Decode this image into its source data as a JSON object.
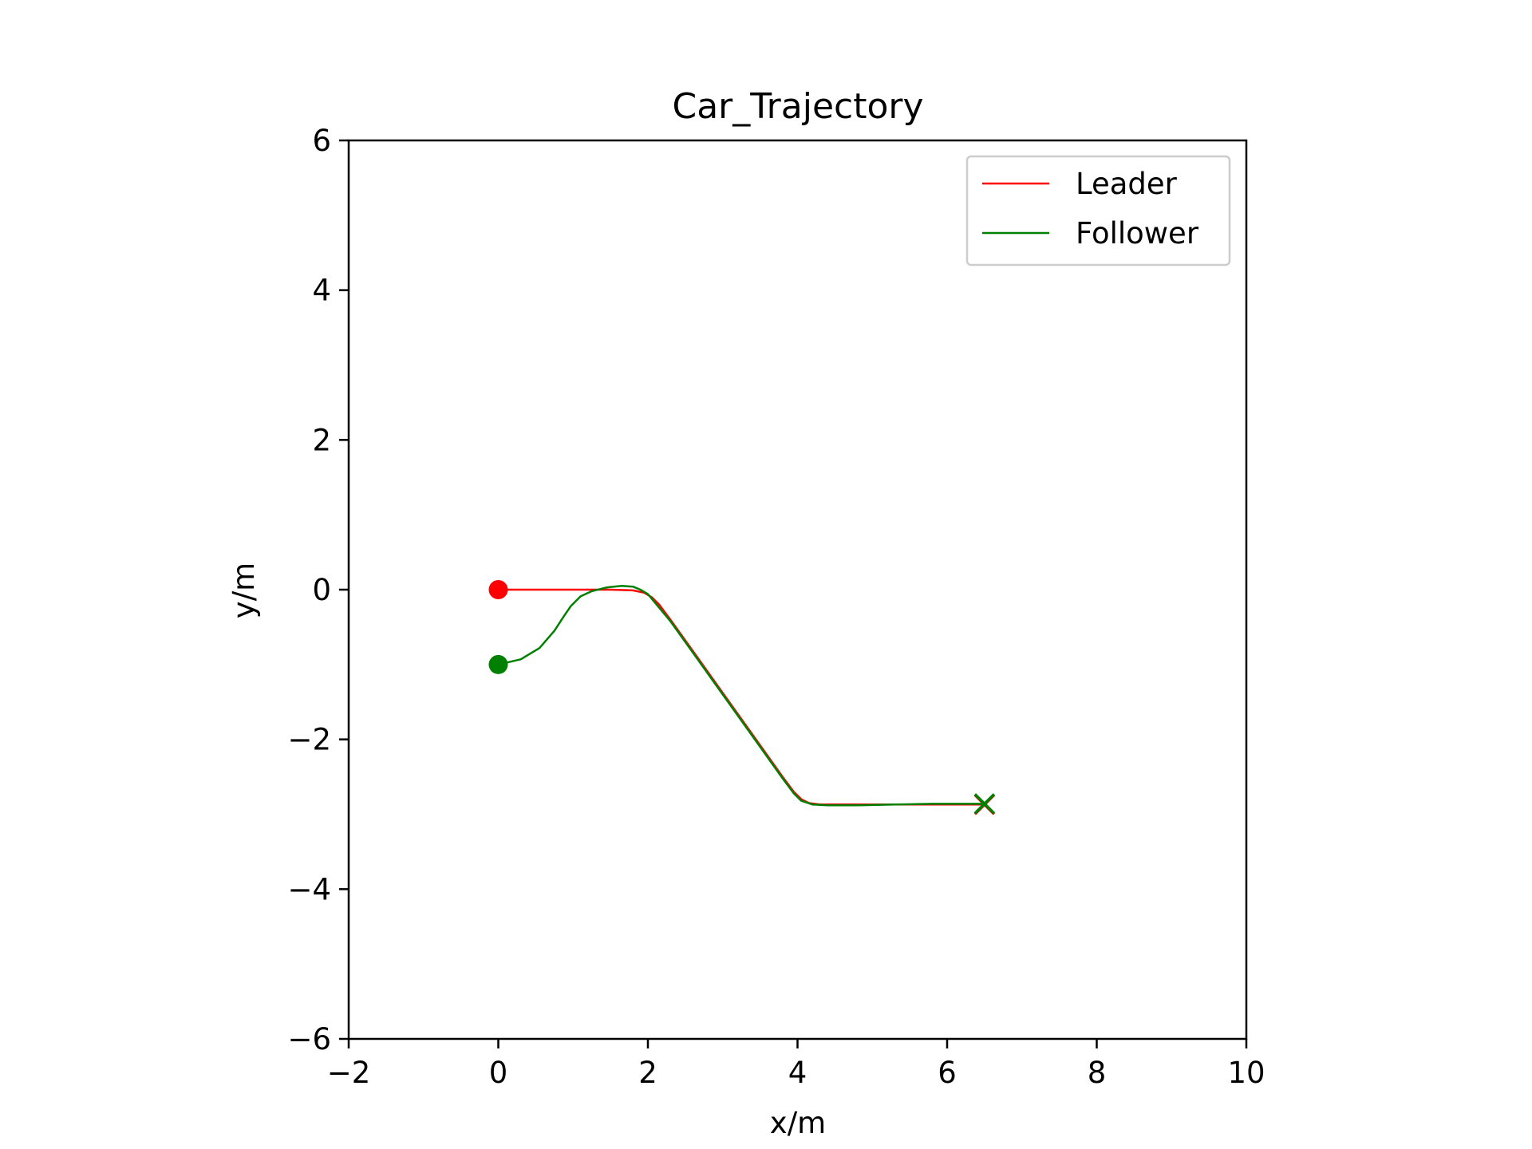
{
  "chart_data": {
    "type": "line",
    "title": "Car_Trajectory",
    "xlabel": "x/m",
    "ylabel": "y/m",
    "xlim": [
      -2,
      10
    ],
    "ylim": [
      -6,
      6
    ],
    "xticks": [
      -2,
      0,
      2,
      4,
      6,
      8,
      10
    ],
    "xtick_labels": [
      "−2",
      "0",
      "2",
      "4",
      "6",
      "8",
      "10"
    ],
    "yticks": [
      -6,
      -4,
      -2,
      0,
      2,
      4,
      6
    ],
    "ytick_labels": [
      "−6",
      "−4",
      "−2",
      "0",
      "2",
      "4",
      "6"
    ],
    "grid": false,
    "legend": "upper right",
    "series": [
      {
        "name": "Leader",
        "color": "#ff0000",
        "x": [
          0.0,
          1.0,
          1.5,
          1.8,
          1.95,
          2.05,
          2.15,
          2.3,
          2.6,
          3.0,
          3.4,
          3.8,
          3.95,
          4.05,
          4.15,
          4.3,
          4.6,
          5.0,
          5.5,
          6.0,
          6.5
        ],
        "y": [
          0.0,
          0.0,
          0.0,
          -0.01,
          -0.04,
          -0.1,
          -0.2,
          -0.4,
          -0.82,
          -1.38,
          -1.94,
          -2.5,
          -2.7,
          -2.8,
          -2.85,
          -2.87,
          -2.87,
          -2.87,
          -2.87,
          -2.87,
          -2.87
        ],
        "start_marker": "circle",
        "end_marker": "x"
      },
      {
        "name": "Follower",
        "color": "#008000",
        "x": [
          0.0,
          0.3,
          0.55,
          0.75,
          0.88,
          0.97,
          1.1,
          1.25,
          1.45,
          1.65,
          1.8,
          1.9,
          2.0,
          2.1,
          2.3,
          2.6,
          3.0,
          3.4,
          3.8,
          3.95,
          4.05,
          4.2,
          4.4,
          4.8,
          5.3,
          5.8,
          6.2,
          6.5
        ],
        "y": [
          -1.0,
          -0.93,
          -0.78,
          -0.55,
          -0.35,
          -0.22,
          -0.09,
          -0.02,
          0.03,
          0.05,
          0.04,
          0.0,
          -0.06,
          -0.18,
          -0.42,
          -0.84,
          -1.4,
          -1.96,
          -2.52,
          -2.72,
          -2.82,
          -2.87,
          -2.88,
          -2.88,
          -2.87,
          -2.86,
          -2.86,
          -2.86
        ],
        "start_marker": "circle",
        "end_marker": "x"
      }
    ]
  }
}
